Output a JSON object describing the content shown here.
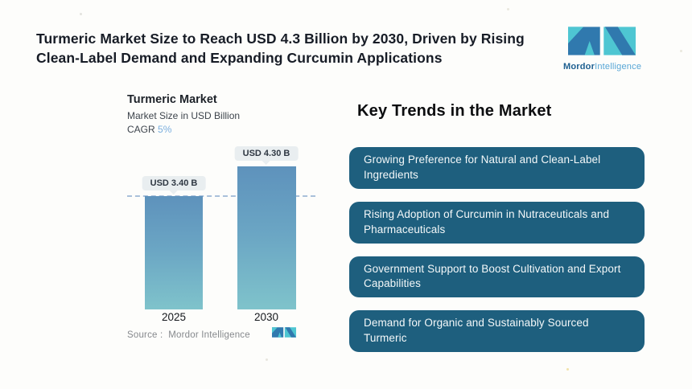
{
  "header": {
    "title": "Turmeric Market Size to Reach USD 4.3 Billion by 2030, Driven by Rising Clean-Label Demand and Expanding Curcumin Applications"
  },
  "brand": {
    "bold": "Mordor",
    "light": "Intelligence"
  },
  "chart": {
    "title": "Turmeric Market",
    "subtitle": "Market Size in USD Billion",
    "cagr_label": "CAGR",
    "cagr_value": "5%",
    "bars": [
      {
        "year": "2025",
        "label": "USD 3.40 B"
      },
      {
        "year": "2030",
        "label": "USD 4.30 B"
      }
    ],
    "source_label": "Source :",
    "source_value": "Mordor Intelligence"
  },
  "chart_data": {
    "type": "bar",
    "title": "Turmeric Market",
    "subtitle": "Market Size in USD Billion",
    "cagr": "5%",
    "categories": [
      "2025",
      "2030"
    ],
    "values": [
      3.4,
      4.3
    ],
    "data_labels": [
      "USD 3.40 B",
      "USD 4.30 B"
    ],
    "ylabel": "Market Size in USD Billion",
    "ylim": [
      0,
      4.3
    ],
    "grid": false,
    "reference_line_at": 3.4,
    "source": "Mordor Intelligence"
  },
  "trends": {
    "heading": "Key Trends in the Market",
    "items": [
      "Growing Preference for Natural and Clean-Label Ingredients",
      "Rising Adoption of Curcumin in Nutraceuticals and Pharmaceuticals",
      "Government Support to Boost Cultivation and Export Capabilities",
      "Demand for Organic and Sustainably Sourced Turmeric"
    ]
  },
  "colors": {
    "brand_blue": "#3079ae",
    "brand_teal": "#4ec6d2",
    "trend_box": "#1e5f7e",
    "bar_top": "#5e92bc",
    "bar_bottom": "#7fc3cb",
    "cagr_accent": "#7aaede",
    "reference_line": "#a9c0da",
    "pill_bg": "#e9eef0"
  }
}
